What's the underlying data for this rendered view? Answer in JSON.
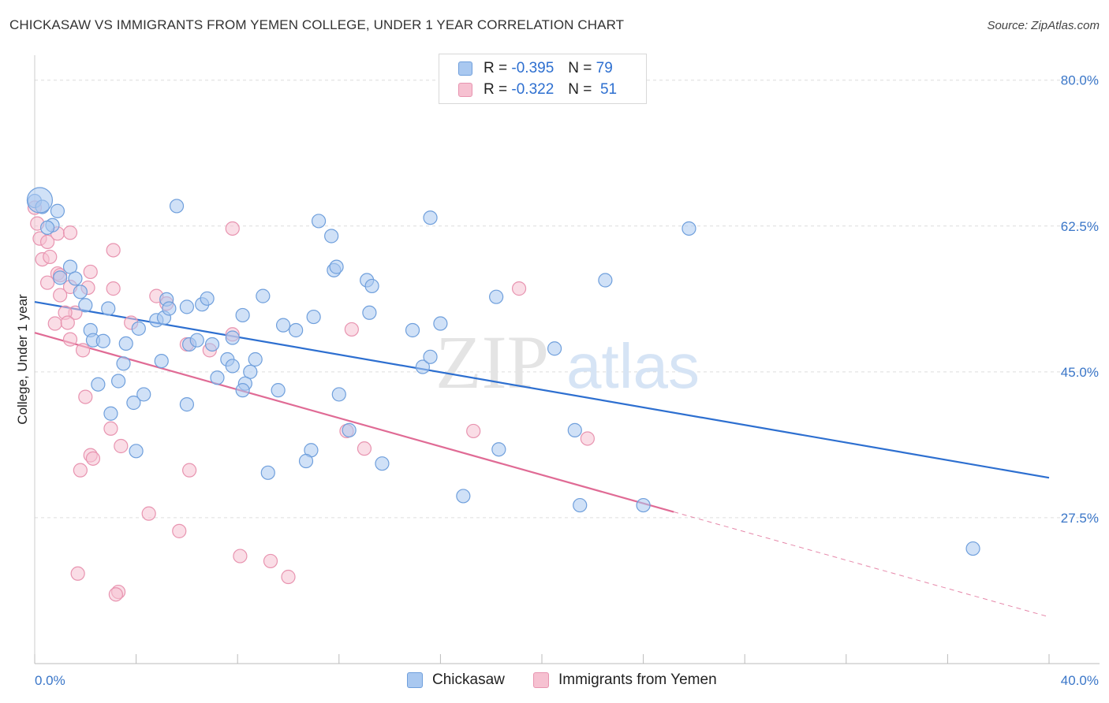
{
  "header": {
    "title": "CHICKASAW VS IMMIGRANTS FROM YEMEN COLLEGE, UNDER 1 YEAR CORRELATION CHART",
    "source": "Source: ZipAtlas.com"
  },
  "legend": {
    "rows": [
      {
        "r_label": "R =",
        "r_value": "-0.395",
        "n_label": "N =",
        "n_value": "79"
      },
      {
        "r_label": "R =",
        "r_value": "-0.322",
        "n_label": "N =",
        "n_value": "51"
      }
    ]
  },
  "bottom_legend": {
    "series_a": "Chickasaw",
    "series_b": "Immigrants from Yemen"
  },
  "watermark": {
    "zip": "ZIP",
    "atlas": "atlas"
  },
  "colors": {
    "blue_fill": "#a9c8f0",
    "blue_stroke": "#6f9fdc",
    "blue_line": "#2d6fd0",
    "pink_fill": "#f6c1d1",
    "pink_stroke": "#e894b0",
    "pink_line": "#e06b95",
    "grid": "#dddddd",
    "tick_text": "#3a76c8"
  },
  "chart_data": {
    "type": "scatter",
    "title": "CHICKASAW VS IMMIGRANTS FROM YEMEN COLLEGE, UNDER 1 YEAR CORRELATION CHART",
    "xlabel": "",
    "ylabel": "College, Under 1 year",
    "xlim": [
      0,
      40
    ],
    "ylim": [
      10,
      83
    ],
    "x_tick_labels": [
      "0.0%",
      "40.0%"
    ],
    "y_ticks": [
      27.5,
      45.0,
      62.5,
      80.0
    ],
    "y_tick_labels": [
      "27.5%",
      "45.0%",
      "62.5%",
      "80.0%"
    ],
    "series": [
      {
        "name": "Chickasaw",
        "color": "#a9c8f0",
        "r": -0.395,
        "n": 79,
        "trend": {
          "x": [
            0,
            40
          ],
          "y": [
            53.4,
            32.3
          ]
        },
        "points": [
          [
            0.0,
            65.5
          ],
          [
            0.3,
            64.8
          ],
          [
            0.9,
            64.3
          ],
          [
            0.7,
            62.6
          ],
          [
            0.5,
            62.3
          ],
          [
            1.4,
            57.6
          ],
          [
            1.6,
            56.2
          ],
          [
            1.0,
            56.3
          ],
          [
            1.8,
            54.6
          ],
          [
            2.0,
            53.0
          ],
          [
            2.9,
            52.6
          ],
          [
            2.2,
            50.0
          ],
          [
            2.3,
            48.8
          ],
          [
            2.7,
            48.7
          ],
          [
            3.6,
            48.4
          ],
          [
            3.5,
            46.0
          ],
          [
            2.5,
            43.5
          ],
          [
            3.3,
            43.9
          ],
          [
            4.3,
            42.3
          ],
          [
            3.9,
            41.3
          ],
          [
            3.0,
            40.0
          ],
          [
            4.0,
            35.5
          ],
          [
            4.8,
            51.2
          ],
          [
            5.1,
            51.5
          ],
          [
            4.1,
            50.2
          ],
          [
            5.2,
            53.7
          ],
          [
            5.3,
            52.6
          ],
          [
            6.0,
            52.8
          ],
          [
            6.6,
            53.1
          ],
          [
            6.8,
            53.8
          ],
          [
            5.6,
            64.9
          ],
          [
            6.1,
            48.3
          ],
          [
            6.4,
            48.8
          ],
          [
            5.0,
            46.3
          ],
          [
            6.0,
            41.1
          ],
          [
            7.0,
            48.3
          ],
          [
            7.6,
            46.5
          ],
          [
            7.2,
            44.3
          ],
          [
            7.8,
            45.7
          ],
          [
            8.2,
            51.8
          ],
          [
            7.8,
            49.1
          ],
          [
            8.7,
            46.5
          ],
          [
            8.5,
            45.0
          ],
          [
            8.3,
            43.6
          ],
          [
            8.2,
            42.8
          ],
          [
            9.0,
            54.1
          ],
          [
            9.6,
            42.8
          ],
          [
            9.8,
            50.6
          ],
          [
            10.3,
            50.0
          ],
          [
            11.0,
            51.6
          ],
          [
            11.2,
            63.1
          ],
          [
            11.7,
            61.3
          ],
          [
            11.8,
            57.2
          ],
          [
            11.9,
            57.6
          ],
          [
            13.1,
            56.0
          ],
          [
            13.3,
            55.3
          ],
          [
            13.2,
            52.1
          ],
          [
            12.0,
            42.3
          ],
          [
            12.4,
            38.0
          ],
          [
            10.9,
            35.6
          ],
          [
            10.7,
            34.3
          ],
          [
            9.2,
            32.9
          ],
          [
            13.7,
            34.0
          ],
          [
            14.9,
            50.0
          ],
          [
            15.3,
            45.6
          ],
          [
            15.6,
            46.8
          ],
          [
            15.6,
            63.5
          ],
          [
            16.0,
            50.8
          ],
          [
            18.2,
            54.0
          ],
          [
            18.3,
            35.7
          ],
          [
            16.9,
            30.1
          ],
          [
            20.5,
            47.8
          ],
          [
            21.3,
            38.0
          ],
          [
            21.5,
            29.0
          ],
          [
            22.5,
            56.0
          ],
          [
            24.0,
            29.0
          ],
          [
            25.8,
            62.2
          ],
          [
            37.0,
            23.8
          ],
          [
            0.2,
            65.6
          ]
        ]
      },
      {
        "name": "Immigrants from Yemen",
        "color": "#f6c1d1",
        "r": -0.322,
        "n": 51,
        "trend": {
          "x": [
            0,
            25.2
          ],
          "y": [
            49.7,
            28.2
          ]
        },
        "trend_dashed": {
          "x": [
            25.2,
            40
          ],
          "y": [
            28.2,
            15.6
          ]
        },
        "points": [
          [
            0.0,
            64.7
          ],
          [
            0.1,
            62.8
          ],
          [
            0.2,
            61.0
          ],
          [
            0.5,
            60.6
          ],
          [
            0.3,
            58.5
          ],
          [
            0.6,
            58.8
          ],
          [
            0.9,
            61.6
          ],
          [
            1.4,
            61.7
          ],
          [
            0.9,
            56.8
          ],
          [
            1.0,
            56.6
          ],
          [
            0.5,
            55.7
          ],
          [
            1.4,
            55.2
          ],
          [
            2.1,
            55.1
          ],
          [
            1.0,
            54.2
          ],
          [
            1.6,
            52.1
          ],
          [
            1.2,
            52.1
          ],
          [
            0.8,
            50.8
          ],
          [
            1.3,
            50.9
          ],
          [
            1.4,
            48.9
          ],
          [
            1.9,
            47.6
          ],
          [
            2.2,
            57.0
          ],
          [
            3.1,
            55.0
          ],
          [
            3.1,
            59.6
          ],
          [
            3.8,
            50.9
          ],
          [
            4.8,
            54.1
          ],
          [
            3.0,
            38.2
          ],
          [
            3.4,
            36.1
          ],
          [
            2.2,
            35.0
          ],
          [
            2.3,
            34.6
          ],
          [
            1.8,
            33.2
          ],
          [
            2.0,
            42.0
          ],
          [
            4.5,
            28.0
          ],
          [
            5.7,
            25.9
          ],
          [
            6.1,
            33.2
          ],
          [
            6.0,
            48.3
          ],
          [
            6.9,
            47.6
          ],
          [
            7.8,
            49.5
          ],
          [
            7.8,
            62.2
          ],
          [
            5.2,
            53.2
          ],
          [
            8.1,
            22.9
          ],
          [
            9.3,
            22.3
          ],
          [
            10.0,
            20.4
          ],
          [
            12.3,
            37.9
          ],
          [
            12.5,
            50.1
          ],
          [
            13.0,
            35.8
          ],
          [
            17.3,
            37.9
          ],
          [
            19.1,
            55.0
          ],
          [
            21.8,
            37.0
          ],
          [
            1.7,
            20.8
          ],
          [
            3.3,
            18.6
          ],
          [
            3.2,
            18.3
          ]
        ]
      }
    ]
  }
}
